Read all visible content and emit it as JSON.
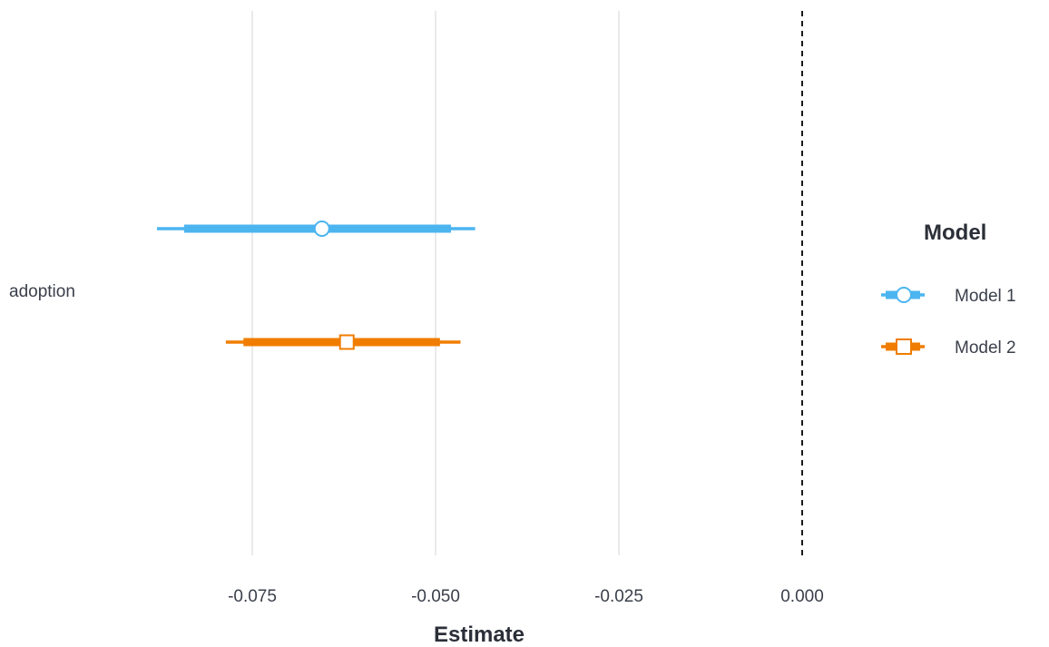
{
  "chart_data": {
    "type": "scatter",
    "subtype": "coefficient-plot",
    "title": "",
    "xlabel": "Estimate",
    "ylabel": "",
    "xlim": [
      -0.0905,
      0.0
    ],
    "x_ticks": [
      "-0.075",
      "-0.050",
      "-0.025",
      "0.000"
    ],
    "x_tick_values": [
      -0.075,
      -0.05,
      -0.025,
      0.0
    ],
    "grid": "vertical major only",
    "reference_line": {
      "x": 0.0,
      "style": "dashed",
      "color": "#1a1a1a"
    },
    "categories": [
      "adoption"
    ],
    "legend": {
      "title": "Model",
      "position": "right"
    },
    "series": [
      {
        "name": "Model 1",
        "color": "#4cb5f0",
        "marker": "circle",
        "estimate": -0.0655,
        "ci_inner": [
          -0.0843,
          -0.0479
        ],
        "ci_outer": [
          -0.088,
          -0.0446
        ]
      },
      {
        "name": "Model 2",
        "color": "#f07d00",
        "marker": "square",
        "estimate": -0.0621,
        "ci_inner": [
          -0.0762,
          -0.0494
        ],
        "ci_outer": [
          -0.0786,
          -0.0466
        ]
      }
    ]
  }
}
